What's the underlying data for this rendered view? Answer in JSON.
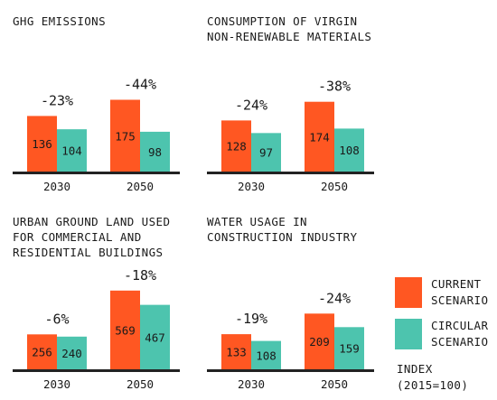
{
  "colors": {
    "current": "#FF5722",
    "circular": "#4DC4AE",
    "axis": "#222222"
  },
  "legend": {
    "current_label": "CURRENT\nSCENARIO",
    "circular_label": "CIRCULAR\nSCENARIO"
  },
  "index_note": "INDEX\n(2015=100)",
  "chart_data": [
    {
      "type": "bar",
      "title": "GHG EMISSIONS",
      "categories": [
        "2030",
        "2050"
      ],
      "series": [
        {
          "name": "CURRENT SCENARIO",
          "values": [
            136,
            175
          ]
        },
        {
          "name": "CIRCULAR SCENARIO",
          "values": [
            104,
            98
          ]
        }
      ],
      "changes": [
        "-23%",
        "-44%"
      ]
    },
    {
      "type": "bar",
      "title": "CONSUMPTION OF VIRGIN\nNON-RENEWABLE MATERIALS",
      "categories": [
        "2030",
        "2050"
      ],
      "series": [
        {
          "name": "CURRENT SCENARIO",
          "values": [
            128,
            174
          ]
        },
        {
          "name": "CIRCULAR SCENARIO",
          "values": [
            97,
            108
          ]
        }
      ],
      "changes": [
        "-24%",
        "-38%"
      ]
    },
    {
      "type": "bar",
      "title": "URBAN GROUND LAND USED\nFOR COMMERCIAL AND\nRESIDENTIAL BUILDINGS",
      "categories": [
        "2030",
        "2050"
      ],
      "series": [
        {
          "name": "CURRENT SCENARIO",
          "values": [
            256,
            569
          ]
        },
        {
          "name": "CIRCULAR SCENARIO",
          "values": [
            240,
            467
          ]
        }
      ],
      "changes": [
        "-6%",
        "-18%"
      ]
    },
    {
      "type": "bar",
      "title": "WATER USAGE IN\nCONSTRUCTION INDUSTRY",
      "categories": [
        "2030",
        "2050"
      ],
      "series": [
        {
          "name": "CURRENT SCENARIO",
          "values": [
            133,
            209
          ]
        },
        {
          "name": "CIRCULAR SCENARIO",
          "values": [
            108,
            159
          ]
        }
      ],
      "changes": [
        "-19%",
        "-24%"
      ]
    }
  ]
}
